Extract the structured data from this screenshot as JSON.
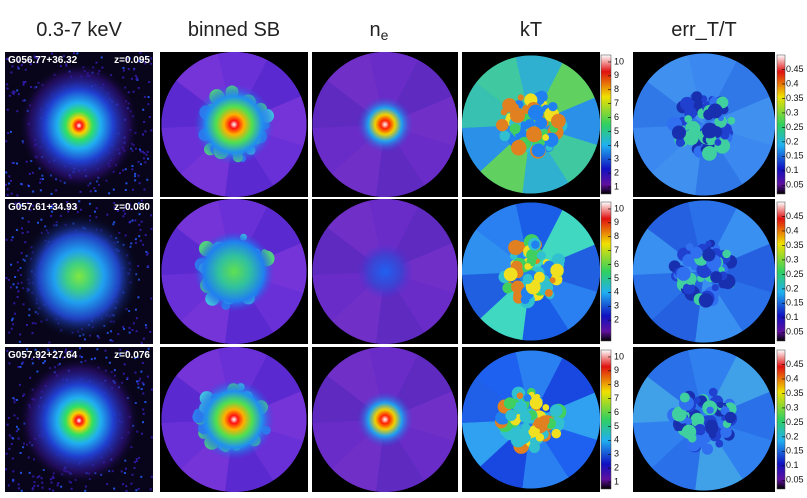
{
  "headers": [
    "0.3-7 keV",
    "binned SB",
    {
      "text": "n",
      "subscript": "e"
    },
    "kT",
    "err_T/T"
  ],
  "rows": [
    {
      "name": "G056.77+36.32",
      "redshift": "z=0.095",
      "kt_ticks": [
        10,
        9,
        8,
        7,
        6,
        5,
        4,
        3,
        2,
        1
      ],
      "err_ticks": [
        0.45,
        0.4,
        0.35,
        0.3,
        0.25,
        0.2,
        0.15,
        0.1,
        0.05
      ]
    },
    {
      "name": "G057.61+34.93",
      "redshift": "z=0.080",
      "kt_ticks": [
        10,
        9,
        8,
        7,
        6,
        5,
        4,
        3,
        2
      ],
      "err_ticks": [
        0.45,
        0.4,
        0.35,
        0.3,
        0.25,
        0.2,
        0.15,
        0.1,
        0.05
      ]
    },
    {
      "name": "G057.92+27.64",
      "redshift": "z=0.076",
      "kt_ticks": [
        10,
        9,
        8,
        7,
        6,
        5,
        4,
        3,
        2,
        1
      ],
      "err_ticks": [
        0.45,
        0.4,
        0.35,
        0.3,
        0.25,
        0.2,
        0.15,
        0.1,
        0.05
      ]
    }
  ]
}
